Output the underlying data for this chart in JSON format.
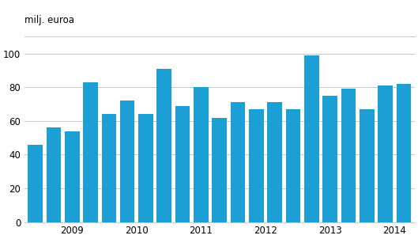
{
  "values": [
    46,
    56,
    54,
    83,
    64,
    72,
    64,
    91,
    69,
    80,
    62,
    71,
    67,
    71,
    67,
    99,
    75,
    79,
    67,
    81,
    82
  ],
  "bar_color": "#1b9fd5",
  "ylabel": "milj. euroa",
  "ylim": [
    0,
    110
  ],
  "yticks": [
    0,
    20,
    40,
    60,
    80,
    100
  ],
  "year_labels": [
    "2009",
    "2010",
    "2011",
    "2012",
    "2013",
    "2014"
  ],
  "year_positions": [
    2.0,
    5.5,
    9.0,
    12.5,
    16.0,
    19.5
  ],
  "background_color": "#ffffff",
  "grid_color": "#c8c8c8",
  "bar_width": 0.8,
  "figsize": [
    5.29,
    3.02
  ],
  "dpi": 100
}
